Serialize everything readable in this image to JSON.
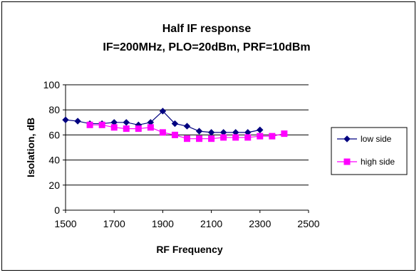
{
  "chart_data": {
    "type": "line",
    "title": [
      "Half IF response",
      "IF=200MHz, PLO=20dBm, PRF=10dBm"
    ],
    "xlabel": "RF Frequency",
    "ylabel": "Isolation, dB",
    "xlim": [
      1500,
      2500
    ],
    "ylim": [
      0,
      100
    ],
    "xticks": [
      1500,
      1700,
      1900,
      2100,
      2300,
      2500
    ],
    "yticks": [
      0,
      20,
      40,
      60,
      80,
      100
    ],
    "grid": "horizontal",
    "legend_position": "right",
    "series": [
      {
        "name": "low side",
        "color": "#000080",
        "marker": "diamond",
        "x": [
          1500,
          1550,
          1600,
          1650,
          1700,
          1750,
          1800,
          1850,
          1900,
          1950,
          2000,
          2050,
          2100,
          2150,
          2200,
          2250,
          2300
        ],
        "values": [
          72,
          71,
          69,
          69,
          70,
          70,
          68,
          70,
          79,
          69,
          67,
          63,
          62,
          62,
          62,
          62,
          64
        ]
      },
      {
        "name": "high side",
        "color": "#ff00ff",
        "marker": "square",
        "x": [
          1600,
          1650,
          1700,
          1750,
          1800,
          1850,
          1900,
          1950,
          2000,
          2050,
          2100,
          2150,
          2200,
          2250,
          2300,
          2350,
          2400
        ],
        "values": [
          68,
          68,
          66,
          65,
          65,
          66,
          62,
          60,
          57,
          57,
          57,
          58,
          58,
          58,
          59,
          59,
          61
        ]
      }
    ]
  }
}
